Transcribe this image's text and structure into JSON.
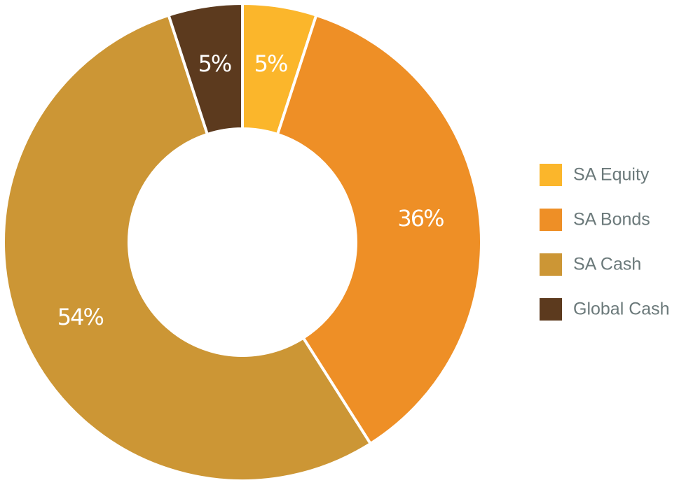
{
  "chart_data": {
    "type": "donut",
    "categories": [
      "SA Equity",
      "SA Bonds",
      "SA Cash",
      "Global Cash"
    ],
    "values": [
      5,
      36,
      54,
      5
    ],
    "value_labels": [
      "5%",
      "36%",
      "54%",
      "5%"
    ],
    "colors": [
      "#fbb62b",
      "#ee8f26",
      "#cc9635",
      "#5c3a1e"
    ],
    "legend": "right"
  }
}
